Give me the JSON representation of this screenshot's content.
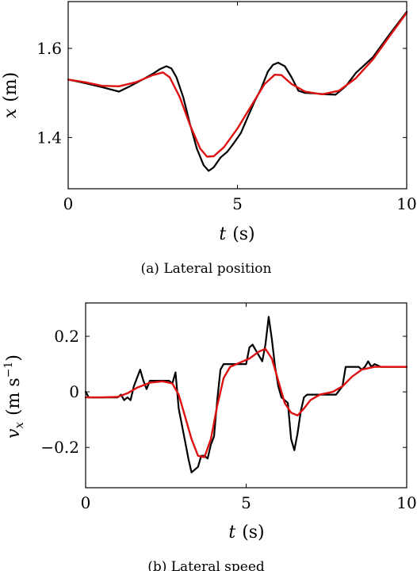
{
  "chart_data": [
    {
      "type": "line",
      "caption": "(a) Lateral position",
      "xlabel_var": "t",
      "xlabel_unit": "(s)",
      "ylabel_var": "x",
      "ylabel_unit": "(m)",
      "xlim": [
        0,
        10
      ],
      "ylim": [
        1.285,
        1.705
      ],
      "xticks": [
        0,
        5,
        10
      ],
      "yticks": [
        1.4,
        1.6
      ],
      "xtick_labels": [
        "0",
        "5",
        "10"
      ],
      "ytick_labels": [
        "1.4",
        "1.6"
      ],
      "grid": false,
      "series": [
        {
          "color": "#000000",
          "x": [
            0,
            0.5,
            1.0,
            1.5,
            1.8,
            2.2,
            2.5,
            2.7,
            2.9,
            3.05,
            3.2,
            3.4,
            3.6,
            3.8,
            4.0,
            4.15,
            4.3,
            4.5,
            4.7,
            4.9,
            5.1,
            5.3,
            5.5,
            5.7,
            5.9,
            6.05,
            6.2,
            6.4,
            6.6,
            6.8,
            7.0,
            7.3,
            7.6,
            7.9,
            8.2,
            8.5,
            9.0,
            9.5,
            10.0
          ],
          "values": [
            1.53,
            1.522,
            1.513,
            1.503,
            1.514,
            1.53,
            1.543,
            1.553,
            1.56,
            1.555,
            1.535,
            1.49,
            1.43,
            1.375,
            1.338,
            1.325,
            1.333,
            1.355,
            1.368,
            1.388,
            1.41,
            1.445,
            1.48,
            1.51,
            1.548,
            1.563,
            1.568,
            1.56,
            1.535,
            1.505,
            1.5,
            1.499,
            1.497,
            1.496,
            1.515,
            1.545,
            1.58,
            1.632,
            1.682
          ]
        },
        {
          "color": "#dd1111",
          "x": [
            0,
            0.5,
            1.0,
            1.5,
            2.0,
            2.5,
            2.8,
            3.0,
            3.3,
            3.6,
            3.9,
            4.1,
            4.3,
            4.6,
            5.0,
            5.4,
            5.8,
            6.1,
            6.3,
            6.6,
            7.0,
            7.5,
            8.0,
            8.5,
            9.0,
            9.5,
            10.0
          ],
          "values": [
            1.53,
            1.524,
            1.516,
            1.515,
            1.524,
            1.54,
            1.546,
            1.535,
            1.49,
            1.428,
            1.375,
            1.357,
            1.358,
            1.378,
            1.42,
            1.47,
            1.52,
            1.541,
            1.54,
            1.52,
            1.503,
            1.497,
            1.505,
            1.533,
            1.575,
            1.628,
            1.68
          ]
        }
      ]
    },
    {
      "type": "line",
      "caption": "(b) Lateral speed",
      "xlabel_var": "t",
      "xlabel_unit": "(s)",
      "ylabel_var": "v",
      "ylabel_sub": "x",
      "ylabel_unit_open": "(m s",
      "ylabel_exp": "−1",
      "ylabel_unit_close": ")",
      "xlim": [
        0,
        10
      ],
      "ylim": [
        -0.345,
        0.32
      ],
      "xticks": [
        0,
        5,
        10
      ],
      "yticks": [
        -0.2,
        0,
        0.2
      ],
      "xtick_labels": [
        "0",
        "5",
        "10"
      ],
      "ytick_labels": [
        "−0.2",
        "0",
        "0.2"
      ],
      "grid": false,
      "series": [
        {
          "color": "#000000",
          "x": [
            0,
            0.1,
            0.3,
            0.6,
            1.0,
            1.1,
            1.2,
            1.3,
            1.4,
            1.5,
            1.6,
            1.7,
            1.8,
            1.9,
            2.0,
            2.1,
            2.2,
            2.4,
            2.6,
            2.7,
            2.8,
            2.9,
            3.0,
            3.1,
            3.2,
            3.3,
            3.4,
            3.5,
            3.6,
            3.7,
            3.8,
            3.9,
            4.0,
            4.1,
            4.2,
            4.3,
            4.4,
            4.5,
            4.6,
            4.7,
            4.8,
            4.9,
            5.0,
            5.1,
            5.2,
            5.3,
            5.4,
            5.5,
            5.6,
            5.7,
            5.8,
            5.9,
            6.0,
            6.1,
            6.2,
            6.3,
            6.4,
            6.5,
            6.6,
            6.7,
            6.8,
            6.9,
            7.0,
            7.2,
            7.5,
            7.8,
            8.0,
            8.1,
            8.3,
            8.5,
            8.6,
            8.7,
            8.8,
            8.9,
            9.0,
            9.2,
            9.5,
            9.7,
            10.0
          ],
          "values": [
            0,
            -0.02,
            -0.02,
            -0.02,
            -0.02,
            -0.01,
            -0.03,
            -0.02,
            -0.03,
            0.02,
            0.05,
            0.08,
            0.04,
            0.01,
            0.04,
            0.04,
            0.04,
            0.04,
            0.04,
            0.03,
            0.07,
            -0.06,
            -0.12,
            -0.18,
            -0.24,
            -0.29,
            -0.28,
            -0.27,
            -0.23,
            -0.23,
            -0.24,
            -0.19,
            -0.16,
            -0.03,
            0.08,
            0.1,
            0.1,
            0.1,
            0.1,
            0.1,
            0.1,
            0.1,
            0.1,
            0.16,
            0.17,
            0.15,
            0.13,
            0.11,
            0.17,
            0.27,
            0.19,
            0.09,
            0.02,
            -0.02,
            -0.03,
            -0.04,
            -0.17,
            -0.21,
            -0.15,
            -0.07,
            -0.02,
            -0.01,
            -0.01,
            -0.01,
            -0.01,
            -0.01,
            0.02,
            0.09,
            0.09,
            0.09,
            0.08,
            0.09,
            0.11,
            0.09,
            0.1,
            0.09,
            0.09,
            0.09,
            0.09
          ]
        },
        {
          "color": "#dd1111",
          "x": [
            0,
            0.5,
            1.0,
            1.3,
            1.6,
            2.0,
            2.4,
            2.7,
            2.9,
            3.1,
            3.3,
            3.5,
            3.7,
            3.9,
            4.1,
            4.3,
            4.5,
            4.8,
            5.1,
            5.4,
            5.6,
            5.8,
            6.0,
            6.2,
            6.4,
            6.6,
            6.8,
            7.0,
            7.3,
            7.7,
            8.0,
            8.3,
            8.6,
            9.0,
            9.5,
            10.0
          ],
          "values": [
            -0.02,
            -0.02,
            -0.018,
            -0.005,
            0.015,
            0.033,
            0.038,
            0.03,
            -0.01,
            -0.09,
            -0.17,
            -0.23,
            -0.235,
            -0.17,
            -0.05,
            0.05,
            0.09,
            0.105,
            0.12,
            0.145,
            0.155,
            0.12,
            0.04,
            -0.04,
            -0.075,
            -0.085,
            -0.06,
            -0.03,
            -0.01,
            0.0,
            0.02,
            0.055,
            0.08,
            0.09,
            0.09,
            0.09
          ]
        }
      ]
    }
  ]
}
